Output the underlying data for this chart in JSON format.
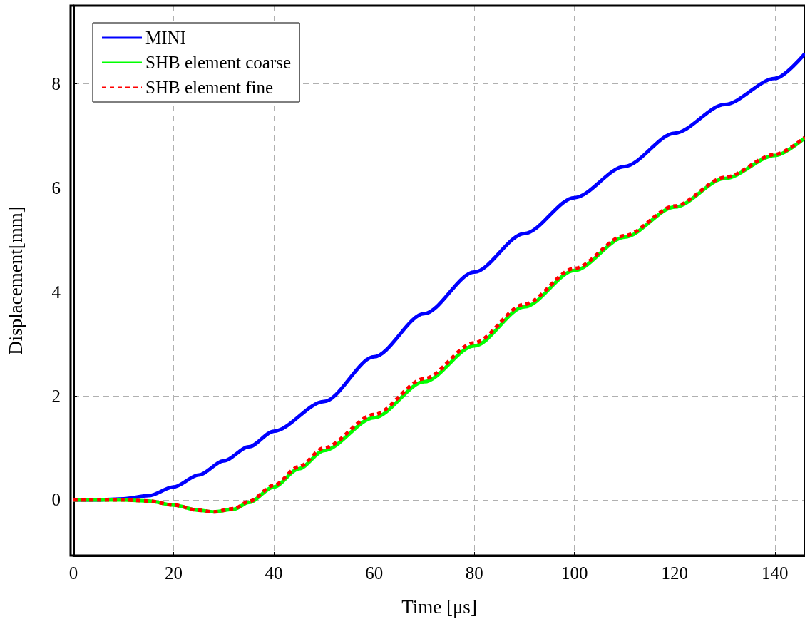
{
  "chart_data": {
    "type": "line",
    "xlabel": "Time [μs]",
    "ylabel": "Displacement[mm]",
    "xlim": [
      0,
      146
    ],
    "xticks": [
      0,
      20,
      40,
      60,
      80,
      100,
      120,
      140
    ],
    "ylim": [
      -1.07,
      9.5
    ],
    "yticks": [
      0,
      2,
      4,
      6,
      8
    ],
    "grid": true,
    "legend": "top left",
    "marker": "none",
    "series": [
      {
        "name": "MINI",
        "color": "#0000ff",
        "line_style": "solid",
        "x": [
          0,
          5,
          10,
          15,
          20,
          25,
          30,
          35,
          40,
          50,
          60,
          70,
          80,
          90,
          100,
          110,
          120,
          130,
          140,
          146
        ],
        "values": [
          0,
          0,
          0.02,
          0.08,
          0.25,
          0.48,
          0.75,
          1.02,
          1.32,
          1.89,
          2.75,
          3.58,
          4.38,
          5.12,
          5.81,
          6.41,
          7.05,
          7.6,
          8.1,
          8.58
        ]
      },
      {
        "name": "SHB element coarse",
        "color": "#00ff00",
        "line_style": "solid",
        "x": [
          0,
          5,
          10,
          15,
          20,
          25,
          28,
          32,
          35,
          40,
          45,
          50,
          60,
          70,
          80,
          90,
          100,
          110,
          120,
          130,
          140,
          146
        ],
        "values": [
          0,
          0,
          0,
          -0.02,
          -0.1,
          -0.2,
          -0.23,
          -0.18,
          -0.05,
          0.25,
          0.6,
          0.95,
          1.58,
          2.27,
          2.96,
          3.71,
          4.41,
          5.05,
          5.63,
          6.18,
          6.62,
          6.96
        ]
      },
      {
        "name": "SHB element fine",
        "color": "#ff0000",
        "line_style": "dashed",
        "x": [
          0,
          5,
          10,
          15,
          20,
          25,
          28,
          32,
          35,
          40,
          45,
          50,
          60,
          70,
          80,
          90,
          100,
          110,
          120,
          130,
          140,
          146
        ],
        "values": [
          0,
          0,
          0,
          -0.02,
          -0.1,
          -0.2,
          -0.23,
          -0.17,
          -0.03,
          0.28,
          0.64,
          1.0,
          1.64,
          2.33,
          3.02,
          3.76,
          4.45,
          5.08,
          5.65,
          6.2,
          6.64,
          6.97
        ]
      }
    ]
  }
}
